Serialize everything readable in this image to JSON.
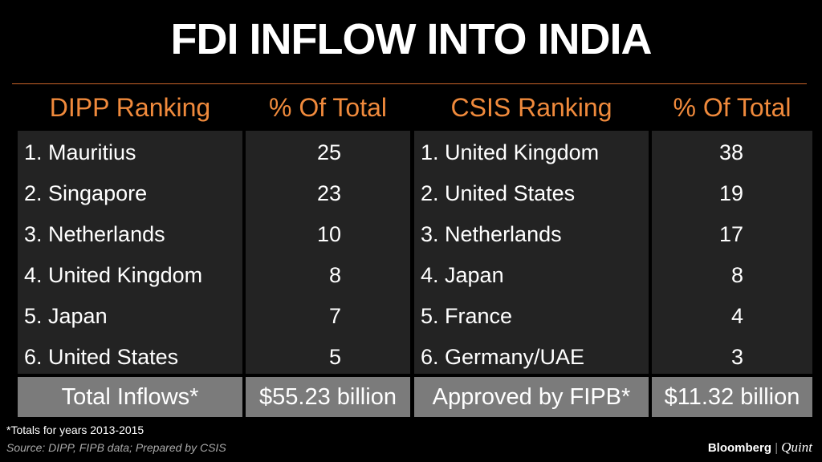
{
  "title": "FDI INFLOW INTO INDIA",
  "table": {
    "header": [
      "DIPP Ranking",
      "% Of Total",
      "CSIS Ranking",
      "% Of Total"
    ],
    "rows": [
      [
        "1. Mauritius",
        25,
        "1. United Kingdom",
        38
      ],
      [
        "2. Singapore",
        23,
        "2. United States",
        19
      ],
      [
        "3. Netherlands",
        10,
        "3. Netherlands",
        17
      ],
      [
        "4. United Kingdom",
        8,
        "4. Japan",
        8
      ],
      [
        "5. Japan",
        7,
        "5. France",
        4
      ],
      [
        "6. United States",
        5,
        "6. Germany/UAE",
        3
      ]
    ],
    "totals": [
      "Total Inflows*",
      "$55.23 billion",
      "Approved by FIPB*",
      "$11.32 billion"
    ]
  },
  "footnote": "*Totals for years 2013-2015",
  "source": "Source: DIPP, FIPB data; Prepared by CSIS",
  "brand": {
    "left": "Bloomberg",
    "right": "Quint"
  }
}
